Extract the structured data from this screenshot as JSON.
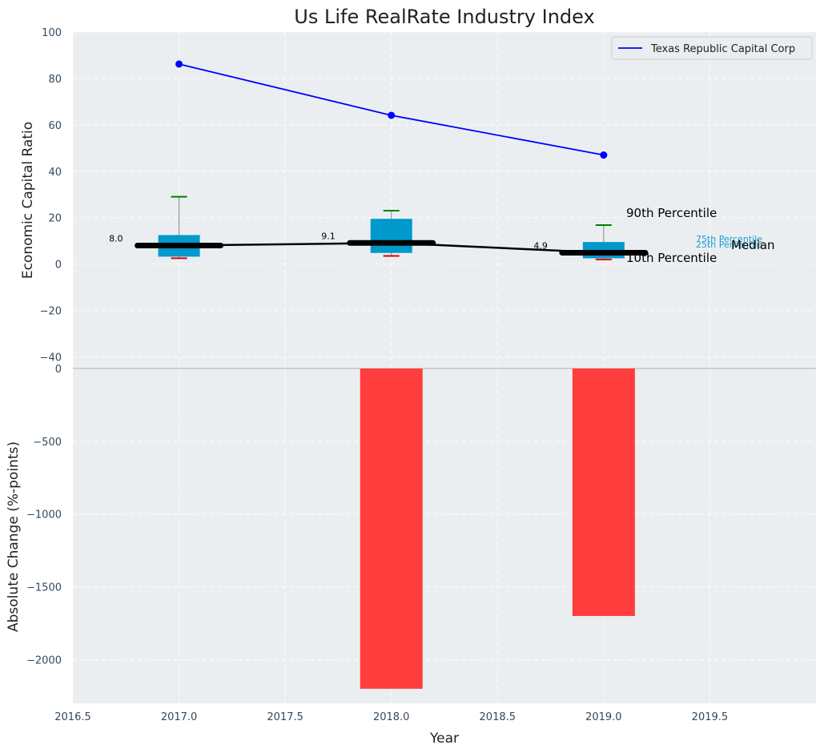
{
  "chart_data": [
    {
      "type": "line",
      "title": "Us Life RealRate Industry Index",
      "xlabel": "",
      "ylabel": "Economic Capital Ratio",
      "xlim": [
        2016.5,
        2020.0
      ],
      "ylim": [
        -45,
        100
      ],
      "x_ticks": [
        "2016.5",
        "2017.0",
        "2017.5",
        "2018.0",
        "2018.5",
        "2019.0",
        "2019.5"
      ],
      "y_ticks": [
        "100",
        "80",
        "60",
        "40",
        "20",
        "0",
        "−20",
        "−40"
      ],
      "grid": true,
      "legend_position": "top-right",
      "series": [
        {
          "name": "Texas Republic Capital Corp",
          "x": [
            2017,
            2018,
            2019
          ],
          "values": [
            86.2,
            64.1,
            47.0
          ],
          "color": "#0000ff"
        }
      ],
      "percentile_boxes": [
        {
          "x": 2017,
          "p10": 2.5,
          "p25": 3.2,
          "median": 8.0,
          "p75": 12.5,
          "p90": 29.0,
          "median_label": "8.0"
        },
        {
          "x": 2018,
          "p10": 3.5,
          "p25": 4.8,
          "median": 9.1,
          "p75": 19.5,
          "p90": 23.0,
          "median_label": "9.1"
        },
        {
          "x": 2019,
          "p10": 2.0,
          "p25": 2.5,
          "median": 4.9,
          "p75": 9.5,
          "p90": 16.8,
          "median_label": "4.9"
        }
      ],
      "median_line_color": "#000000",
      "box_color": "#0099cc",
      "annotations": [
        "90th Percentile",
        "10th Percentile",
        "75th Percentile",
        "25th Percentile",
        "Median"
      ]
    },
    {
      "type": "bar",
      "xlabel": "Year",
      "ylabel": "Absolute Change (%-points)",
      "xlim": [
        2016.5,
        2020.0
      ],
      "ylim": [
        -2300,
        0
      ],
      "y_ticks": [
        "0",
        "−500",
        "−1000",
        "−1500",
        "−2000"
      ],
      "x": [
        2017,
        2018,
        2019
      ],
      "values": [
        0,
        -2200,
        -1700
      ],
      "color": "#ff3d3d",
      "grid": true
    }
  ]
}
